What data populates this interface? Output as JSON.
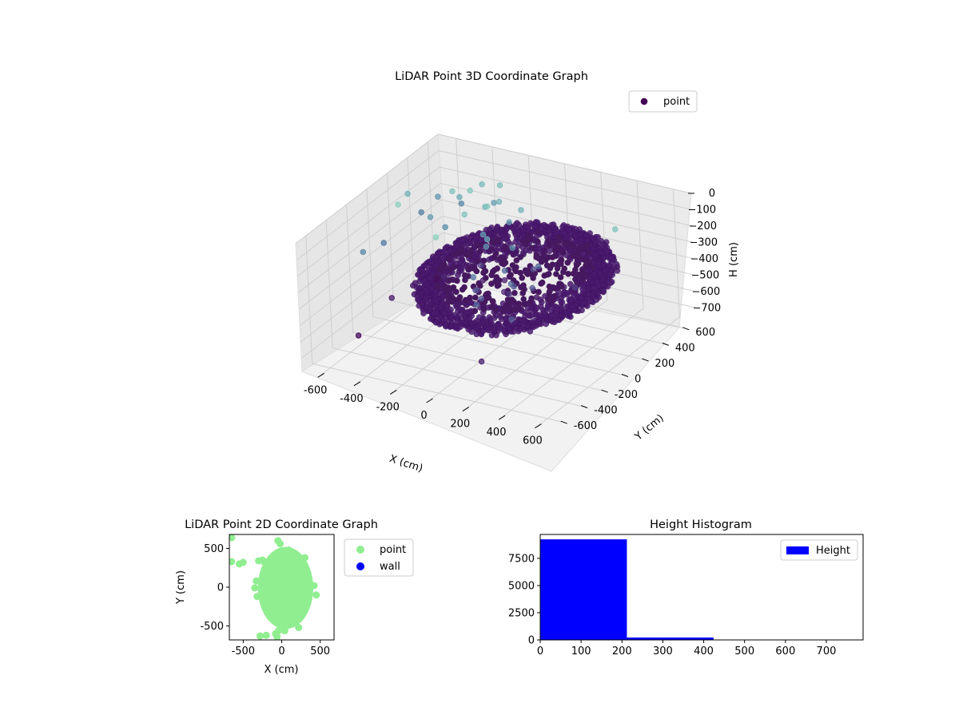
{
  "chart_data": [
    {
      "type": "scatter",
      "title": "LiDAR Point 3D Coordinate Graph",
      "xlabel": "X (cm)",
      "ylabel": "Y (cm)",
      "zlabel": "H (cm)",
      "xlim": [
        -700,
        700
      ],
      "ylim": [
        -700,
        700
      ],
      "zlim": [
        780,
        0
      ],
      "x_ticks": [
        -600,
        -400,
        -200,
        0,
        200,
        400,
        600
      ],
      "y_ticks": [
        -600,
        -400,
        -200,
        0,
        200,
        400,
        600
      ],
      "z_ticks": [
        0,
        100,
        200,
        300,
        400,
        500,
        600,
        700
      ],
      "z_inverted": true,
      "grid": true,
      "legend": {
        "position": "top-right",
        "entries": [
          "point"
        ]
      },
      "colormap": "viridis",
      "series": [
        {
          "name": "point",
          "color": "#440154",
          "points": [
            [
              -600,
              450,
              740
            ],
            [
              -650,
              100,
              700
            ],
            [
              -640,
              -250,
              760
            ],
            [
              -500,
              350,
              650
            ],
            [
              -360,
              480,
              700
            ],
            [
              -250,
              500,
              680
            ],
            [
              -150,
              320,
              640
            ],
            [
              -320,
              400,
              560
            ],
            [
              -80,
              250,
              600
            ],
            [
              -200,
              150,
              560
            ],
            [
              100,
              -350,
              680
            ],
            [
              -40,
              420,
              520
            ],
            [
              -60,
              -50,
              480
            ],
            [
              30,
              110,
              460
            ],
            [
              220,
              -250,
              440
            ],
            [
              60,
              300,
              420
            ],
            [
              -40,
              150,
              400
            ],
            [
              0,
              -200,
              430
            ],
            [
              50,
              50,
              410
            ],
            [
              -150,
              50,
              500
            ],
            [
              200,
              400,
              560
            ],
            [
              80,
              200,
              500
            ],
            [
              -250,
              350,
              160
            ],
            [
              -350,
              500,
              120
            ],
            [
              -400,
              300,
              80
            ],
            [
              -150,
              200,
              60
            ],
            [
              -500,
              -50,
              20
            ],
            [
              -150,
              -300,
              10
            ],
            [
              500,
              300,
              80
            ],
            [
              -450,
              450,
              200
            ],
            [
              -220,
              100,
              80
            ],
            [
              -650,
              300,
              160
            ],
            [
              -300,
              520,
              230
            ],
            [
              -100,
              100,
              200
            ],
            [
              -500,
              550,
              300
            ],
            [
              -200,
              400,
              140
            ],
            [
              -650,
              -150,
              300
            ],
            [
              -420,
              250,
              280
            ],
            [
              -250,
              500,
              100
            ],
            [
              -600,
              500,
              260
            ],
            [
              -650,
              420,
              330
            ],
            [
              -500,
              250,
              240
            ],
            [
              -120,
              350,
              220
            ],
            [
              -180,
              200,
              240
            ],
            [
              -120,
              120,
              260
            ],
            [
              -20,
              200,
              280
            ],
            [
              -100,
              -50,
              360
            ],
            [
              -650,
              50,
              340
            ],
            [
              -80,
              400,
              160
            ],
            [
              -300,
              300,
              50
            ]
          ]
        }
      ],
      "cluster": {
        "center_x": 100,
        "center_y": 0,
        "radius_x": 450,
        "radius_y": 600,
        "h_top": 260,
        "h_bottom": 420
      }
    },
    {
      "type": "scatter",
      "title": "LiDAR Point 2D Coordinate Graph",
      "xlabel": "X (cm)",
      "ylabel": "Y (cm)",
      "xlim": [
        -680,
        680
      ],
      "ylim": [
        -680,
        680
      ],
      "x_ticks": [
        -500,
        0,
        500
      ],
      "y_ticks": [
        -500,
        0,
        500
      ],
      "grid": false,
      "legend": {
        "position": "outside-right",
        "entries": [
          "point",
          "wall"
        ]
      },
      "series": [
        {
          "name": "point",
          "color": "#90ee90",
          "points": [
            [
              -650,
              640
            ],
            [
              -650,
              330
            ],
            [
              -550,
              300
            ],
            [
              -500,
              320
            ],
            [
              -300,
              340
            ],
            [
              -250,
              350
            ],
            [
              -230,
              330
            ],
            [
              -50,
              600
            ],
            [
              -20,
              560
            ],
            [
              -280,
              -630
            ],
            [
              -200,
              -620
            ],
            [
              -80,
              -600
            ],
            [
              -40,
              -560
            ],
            [
              -60,
              -640
            ],
            [
              40,
              -560
            ],
            [
              50,
              300
            ],
            [
              60,
              400
            ],
            [
              90,
              480
            ],
            [
              300,
              380
            ],
            [
              450,
              -100
            ],
            [
              420,
              20
            ],
            [
              -350,
              -10
            ],
            [
              -330,
              80
            ],
            [
              -320,
              -120
            ],
            [
              220,
              -520
            ],
            [
              -120,
              0
            ],
            [
              -50,
              0
            ],
            [
              100,
              0
            ],
            [
              0,
              200
            ],
            [
              0,
              -200
            ],
            [
              150,
              250
            ],
            [
              150,
              -300
            ],
            [
              -100,
              -350
            ],
            [
              250,
              100
            ],
            [
              250,
              -100
            ],
            [
              -150,
              150
            ]
          ]
        },
        {
          "name": "wall",
          "color": "#0000ff",
          "points": []
        }
      ],
      "blob": {
        "center_x": 50,
        "center_y": -10,
        "radius_x": 360,
        "radius_y": 530
      }
    },
    {
      "type": "bar",
      "title": "Height Histogram",
      "xlabel": "",
      "ylabel": "",
      "xlim": [
        0,
        790
      ],
      "ylim": [
        0,
        9700
      ],
      "x_ticks": [
        0,
        100,
        200,
        300,
        400,
        500,
        600,
        700
      ],
      "y_ticks": [
        0,
        2500,
        5000,
        7500
      ],
      "legend": {
        "position": "top-right",
        "entries": [
          "Height"
        ]
      },
      "series": [
        {
          "name": "Height",
          "color": "#0000ff",
          "bins": [
            {
              "x0": 0,
              "x1": 212,
              "count": 9250
            },
            {
              "x0": 212,
              "x1": 424,
              "count": 220
            },
            {
              "x0": 424,
              "x1": 636,
              "count": 12
            },
            {
              "x0": 636,
              "x1": 790,
              "count": 6
            }
          ]
        }
      ]
    }
  ]
}
